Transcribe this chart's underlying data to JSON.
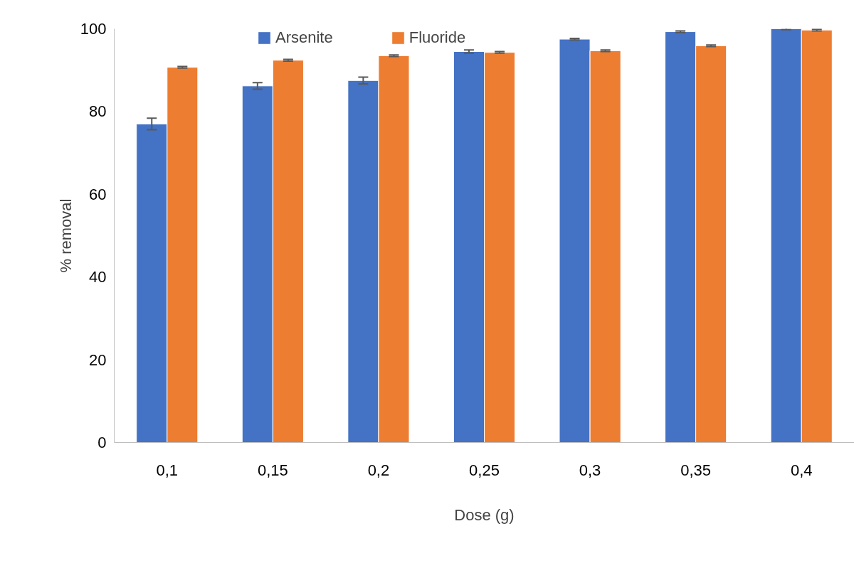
{
  "chart_data": {
    "type": "bar",
    "xlabel": "Dose (g)",
    "ylabel": "% removal",
    "categories": [
      "0,1",
      "0,15",
      "0,2",
      "0,25",
      "0,3",
      "0,35",
      "0,4"
    ],
    "series": [
      {
        "name": "Arsenite",
        "color": "#4472c4",
        "values": [
          77.0,
          86.2,
          87.5,
          94.5,
          97.5,
          99.3,
          100.0
        ],
        "errors": [
          1.4,
          0.8,
          0.8,
          0.4,
          0.2,
          0.2,
          0.2
        ]
      },
      {
        "name": "Fluoride",
        "color": "#ed7d31",
        "values": [
          90.7,
          92.4,
          93.5,
          94.3,
          94.7,
          95.9,
          99.7
        ],
        "errors": [
          0.2,
          0.2,
          0.2,
          0.2,
          0.2,
          0.2,
          0.2
        ]
      }
    ],
    "ylim": [
      0,
      100
    ],
    "yticks": [
      0,
      20,
      40,
      60,
      80,
      100
    ],
    "grid": false,
    "legend": "top"
  }
}
